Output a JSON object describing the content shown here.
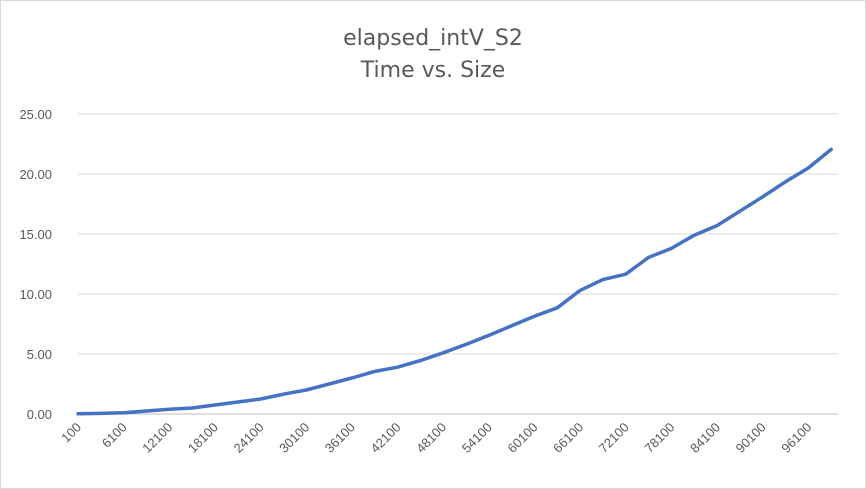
{
  "chart_data": {
    "type": "line",
    "title": "elapsed_intV_S2",
    "subtitle": "Time vs. Size",
    "xlabel": "",
    "ylabel": "",
    "ylim": [
      0,
      25
    ],
    "y_ticks": [
      "0.00",
      "5.00",
      "10.00",
      "15.00",
      "20.00",
      "25.00"
    ],
    "x_tick_labels": [
      "100",
      "6100",
      "12100",
      "18100",
      "24100",
      "30100",
      "36100",
      "42100",
      "48100",
      "54100",
      "60100",
      "66100",
      "72100",
      "78100",
      "84100",
      "90100",
      "96100"
    ],
    "grid": true,
    "legend": "none",
    "series": [
      {
        "color": "#4472C4",
        "x": [
          100,
          3100,
          6100,
          9100,
          12100,
          15100,
          18100,
          21100,
          24100,
          27100,
          30100,
          33100,
          36100,
          39100,
          42100,
          45100,
          48100,
          51100,
          54100,
          57100,
          60100,
          63100,
          66100,
          69100,
          72100,
          75100,
          78100,
          81100,
          84100,
          87100,
          90100,
          93100,
          96100,
          99100
        ],
        "values": [
          0.02,
          0.05,
          0.1,
          0.25,
          0.4,
          0.5,
          0.75,
          1.0,
          1.25,
          1.65,
          2.0,
          2.5,
          3.0,
          3.55,
          3.9,
          4.45,
          5.1,
          5.8,
          6.55,
          7.35,
          8.15,
          8.85,
          10.3,
          11.2,
          11.65,
          13.05,
          13.8,
          14.9,
          15.7,
          16.9,
          18.1,
          19.35,
          20.5,
          22.05
        ]
      }
    ]
  }
}
